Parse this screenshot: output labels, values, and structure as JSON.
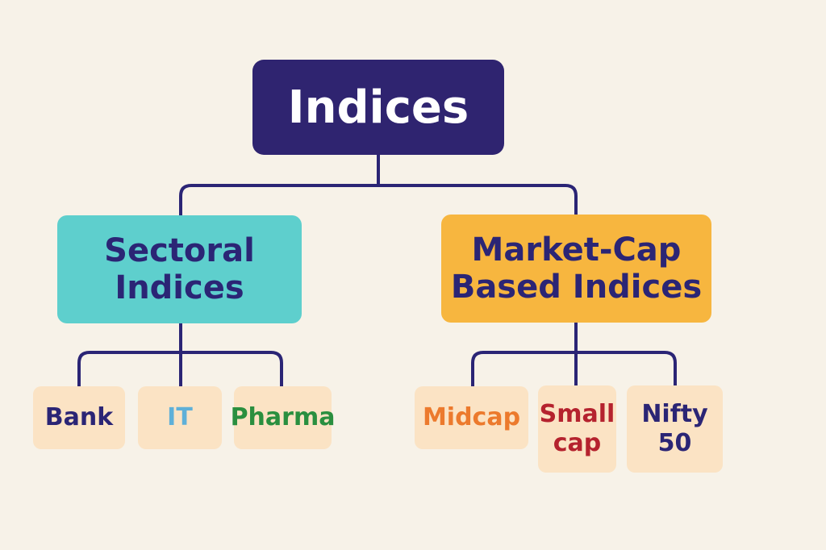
{
  "diagram": {
    "root": {
      "label": "Indices"
    },
    "categories": [
      {
        "label": "Sectoral\nIndices",
        "children": [
          "Bank",
          "IT",
          "Pharma"
        ]
      },
      {
        "label": "Market-Cap\nBased Indices",
        "children": [
          "Midcap",
          "Small\ncap",
          "Nifty\n50"
        ]
      }
    ]
  },
  "colors": {
    "background": "#f7f2e8",
    "root_fill": "#2f2470",
    "connector": "#2b2575",
    "sectoral_fill": "#5ecfcd",
    "marketcap_fill": "#f7b63f",
    "leaf_fill": "#fbe3c4",
    "bank_text": "#2b2575",
    "it_text": "#5fb0d8",
    "pharma_text": "#2a8f3f",
    "midcap_text": "#ec7a2d",
    "smallcap_text": "#b5222e",
    "nifty_text": "#2b2575"
  }
}
